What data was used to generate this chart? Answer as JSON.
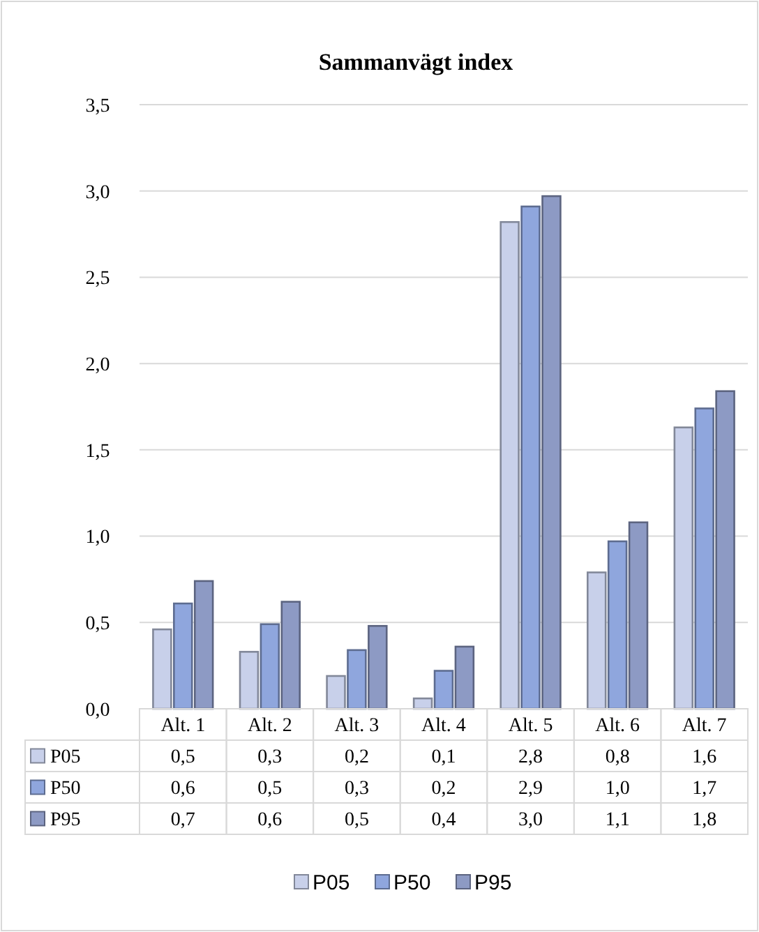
{
  "chart_data": {
    "type": "bar",
    "title": "Sammanvägt index",
    "categories": [
      "Alt. 1",
      "Alt. 2",
      "Alt. 3",
      "Alt. 4",
      "Alt. 5",
      "Alt. 6",
      "Alt. 7"
    ],
    "series": [
      {
        "name": "P05",
        "color": "#c8d0ea",
        "values": [
          0.46,
          0.33,
          0.19,
          0.06,
          2.82,
          0.79,
          1.63
        ],
        "value_labels": [
          "0,5",
          "0,3",
          "0,2",
          "0,1",
          "2,8",
          "0,8",
          "1,6"
        ]
      },
      {
        "name": "P50",
        "color": "#8fa6dd",
        "values": [
          0.61,
          0.49,
          0.34,
          0.22,
          2.91,
          0.97,
          1.74
        ],
        "value_labels": [
          "0,6",
          "0,5",
          "0,3",
          "0,2",
          "2,9",
          "1,0",
          "1,7"
        ]
      },
      {
        "name": "P95",
        "color": "#8d9ac4",
        "values": [
          0.74,
          0.62,
          0.48,
          0.36,
          2.97,
          1.08,
          1.84
        ],
        "value_labels": [
          "0,7",
          "0,6",
          "0,5",
          "0,4",
          "3,0",
          "1,1",
          "1,8"
        ]
      }
    ],
    "ylim": [
      0,
      3.5
    ],
    "yticks": [
      {
        "value": 0,
        "label": "0,0"
      },
      {
        "value": 0.5,
        "label": "0,5"
      },
      {
        "value": 1,
        "label": "1,0"
      },
      {
        "value": 1.5,
        "label": "1,5"
      },
      {
        "value": 2,
        "label": "2,0"
      },
      {
        "value": 2.5,
        "label": "2,5"
      },
      {
        "value": 3,
        "label": "3,0"
      },
      {
        "value": 3.5,
        "label": "3,5"
      }
    ],
    "grid": "y",
    "legend": "bottom"
  }
}
